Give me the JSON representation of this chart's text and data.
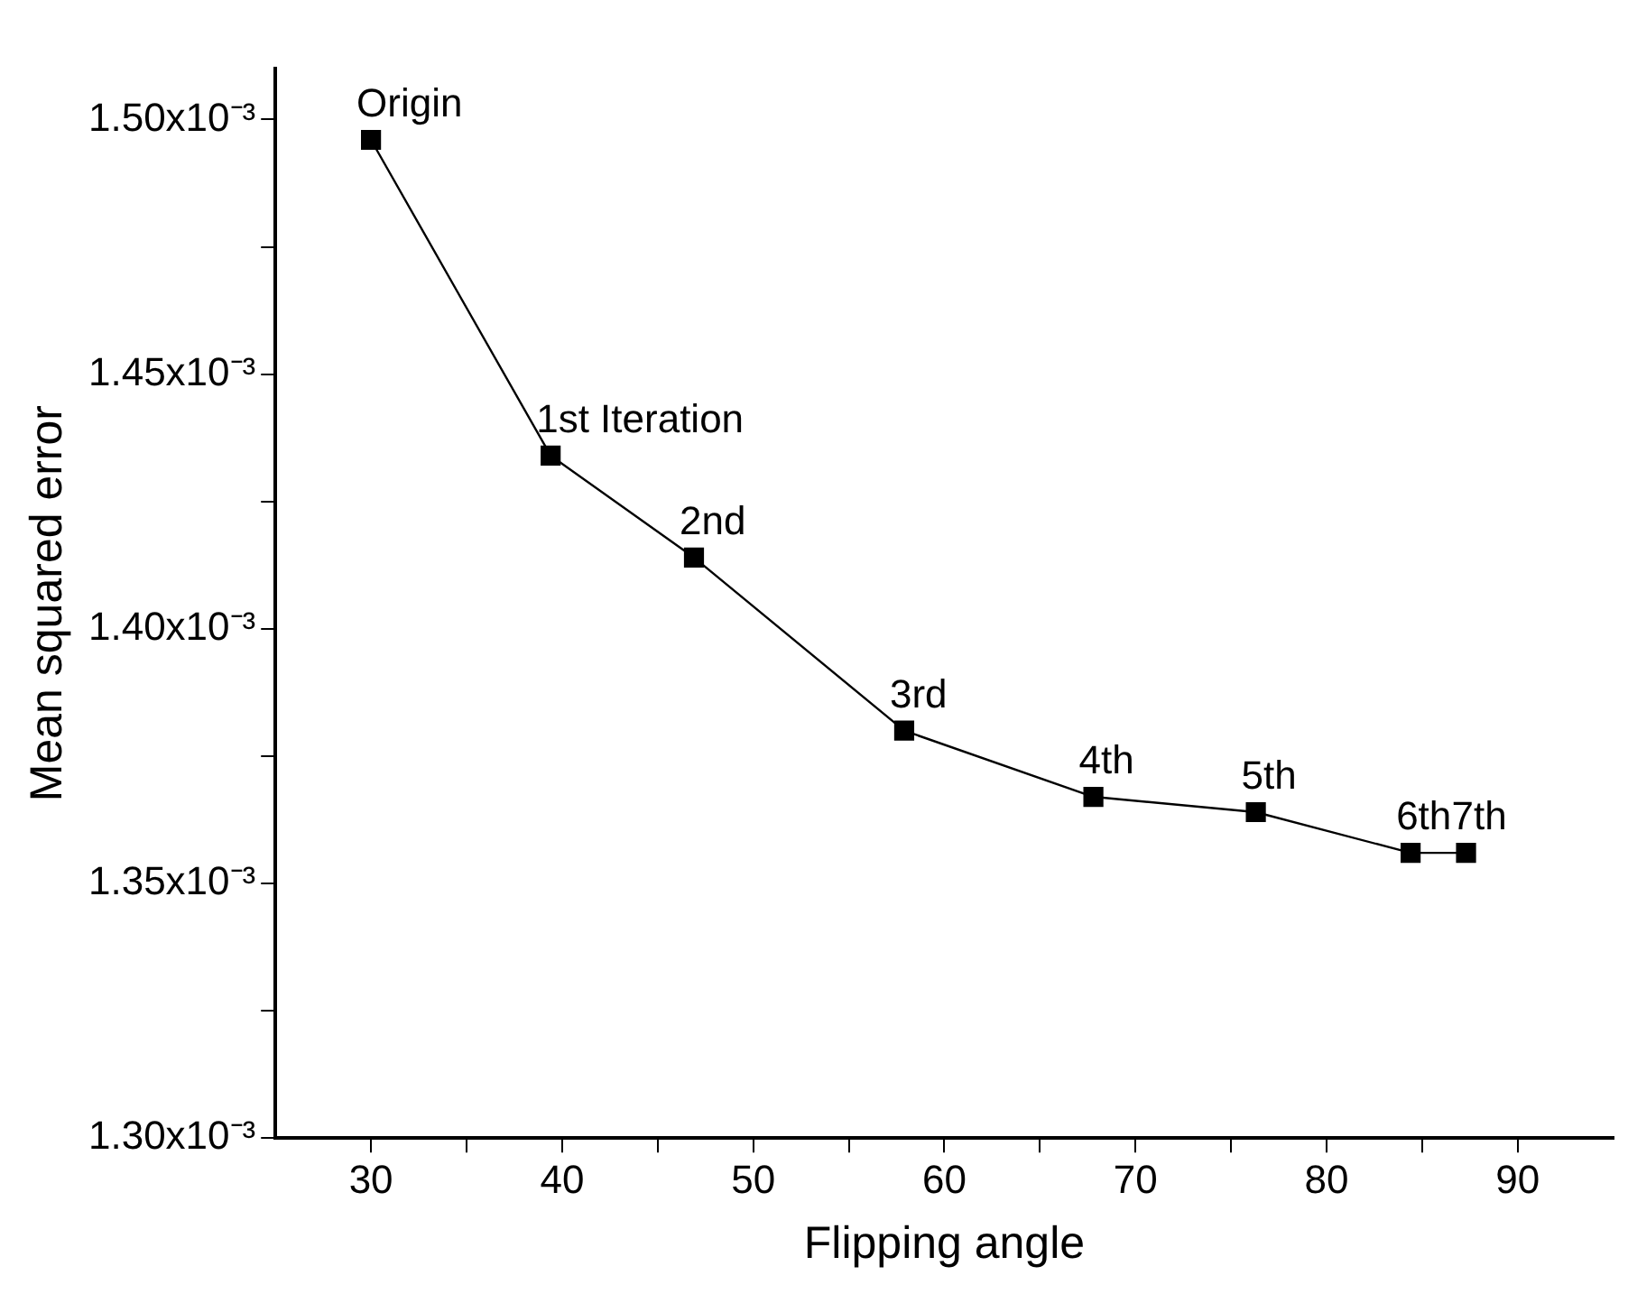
{
  "chart_data": {
    "type": "line",
    "xlabel": "Flipping angle",
    "ylabel": "Mean squared error",
    "x": [
      30,
      39.4,
      46.9,
      57.9,
      67.8,
      76.3,
      84.4,
      87.3
    ],
    "series": [
      {
        "color": "#000000",
        "values": [
          0.001496,
          0.001434,
          0.001414,
          0.00138,
          0.001367,
          0.001364,
          0.001356,
          0.001356
        ]
      }
    ],
    "xlim": [
      25,
      95
    ],
    "xticks": [
      30,
      {
        "value": 35,
        "label": null
      },
      40,
      {
        "value": 45,
        "label": null
      },
      50,
      {
        "value": 55,
        "label": null
      },
      60,
      {
        "value": 65,
        "label": null
      },
      70,
      {
        "value": 75,
        "label": null
      },
      80,
      {
        "value": 85,
        "label": null
      },
      90
    ],
    "ylim": [
      0.0013,
      0.00151
    ],
    "yticks": [
      {
        "value": 0.0013,
        "label": "1.30x10⁻³"
      },
      {
        "value": 0.001325,
        "label": null
      },
      {
        "value": 0.00135,
        "label": "1.35x10⁻³"
      },
      {
        "value": 0.001375,
        "label": null
      },
      {
        "value": 0.0014,
        "label": "1.40x10⁻³"
      },
      {
        "value": 0.001425,
        "label": null
      },
      {
        "value": 0.00145,
        "label": "1.45x10⁻³"
      },
      {
        "value": 0.001475,
        "label": null
      },
      {
        "value": 0.0015,
        "label": "1.50x10⁻³"
      }
    ],
    "grid": false,
    "legend": false,
    "marker": "square",
    "line_style": "solid",
    "annotations": [
      {
        "text": "Origin",
        "x": 30,
        "y": 0.001496
      },
      {
        "text": "1st Iteration",
        "x": 39.4,
        "y": 0.001434
      },
      {
        "text": "2nd",
        "x": 46.9,
        "y": 0.001414
      },
      {
        "text": "3rd",
        "x": 57.9,
        "y": 0.00138
      },
      {
        "text": "4th",
        "x": 67.8,
        "y": 0.001367
      },
      {
        "text": "5th",
        "x": 76.3,
        "y": 0.001364
      },
      {
        "text": "6th",
        "x": 84.4,
        "y": 0.001356
      },
      {
        "text": "7th",
        "x": 87.3,
        "y": 0.001356
      }
    ]
  }
}
